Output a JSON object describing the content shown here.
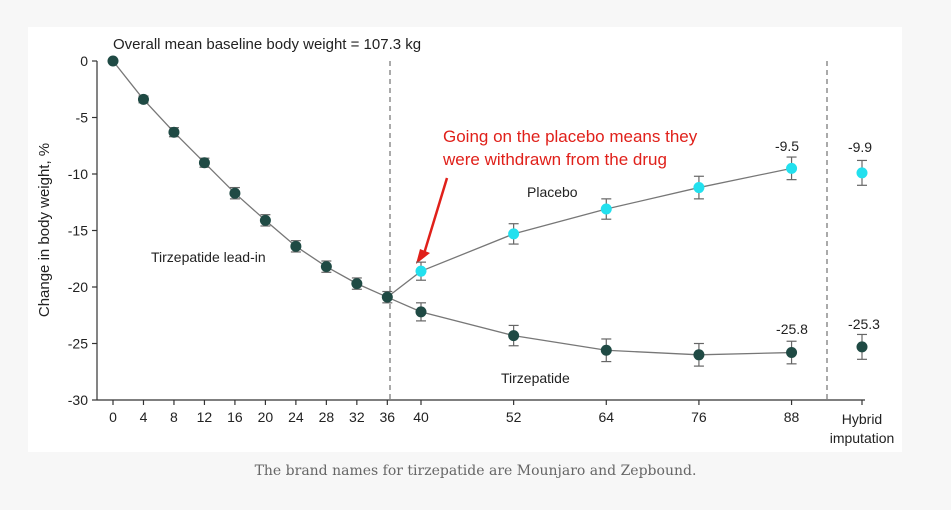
{
  "chart_data": {
    "type": "line",
    "title": "Overall mean baseline body weight = 107.3 kg",
    "ylabel": "Change in body weight, %",
    "xlabel": "",
    "ylim": [
      -30,
      0
    ],
    "yticks": [
      0,
      -5,
      -10,
      -15,
      -20,
      -25,
      -30
    ],
    "xtick_labels": [
      "0",
      "4",
      "8",
      "12",
      "16",
      "20",
      "24",
      "28",
      "32",
      "36",
      "40",
      "52",
      "64",
      "76",
      "88"
    ],
    "extra_xtick_label": [
      "Hybrid",
      "imputation"
    ],
    "grid": false,
    "series": [
      {
        "name": "Tirzepatide lead-in",
        "color": "#1f4a44",
        "points": [
          {
            "x": 0,
            "y": 0,
            "err": 0
          },
          {
            "x": 4,
            "y": -3.4,
            "err": 0.3
          },
          {
            "x": 8,
            "y": -6.3,
            "err": 0.4
          },
          {
            "x": 12,
            "y": -9.0,
            "err": 0.4
          },
          {
            "x": 16,
            "y": -11.7,
            "err": 0.5
          },
          {
            "x": 20,
            "y": -14.1,
            "err": 0.5
          },
          {
            "x": 24,
            "y": -16.4,
            "err": 0.5
          },
          {
            "x": 28,
            "y": -18.2,
            "err": 0.5
          },
          {
            "x": 32,
            "y": -19.7,
            "err": 0.5
          },
          {
            "x": 36,
            "y": -20.9,
            "err": 0.5
          }
        ]
      },
      {
        "name": "Placebo",
        "color": "#22e0ee",
        "points": [
          {
            "x": 36,
            "y": -20.9,
            "err": 0
          },
          {
            "x": 40,
            "y": -18.6,
            "err": 0.8
          },
          {
            "x": 52,
            "y": -15.3,
            "err": 0.9
          },
          {
            "x": 64,
            "y": -13.1,
            "err": 0.9
          },
          {
            "x": 76,
            "y": -11.2,
            "err": 1.0
          },
          {
            "x": 88,
            "y": -9.5,
            "err": 1.0
          }
        ],
        "hybrid": {
          "y": -9.9,
          "err": 1.1,
          "label": "-9.9"
        },
        "end_label": "-9.5"
      },
      {
        "name": "Tirzepatide",
        "color": "#1f4a44",
        "points": [
          {
            "x": 36,
            "y": -20.9,
            "err": 0
          },
          {
            "x": 40,
            "y": -22.2,
            "err": 0.8
          },
          {
            "x": 52,
            "y": -24.3,
            "err": 0.9
          },
          {
            "x": 64,
            "y": -25.6,
            "err": 1.0
          },
          {
            "x": 76,
            "y": -26.0,
            "err": 1.0
          },
          {
            "x": 88,
            "y": -25.8,
            "err": 1.0
          }
        ],
        "hybrid": {
          "y": -25.3,
          "err": 1.1,
          "label": "-25.3"
        },
        "end_label": "-25.8"
      }
    ],
    "annotation": {
      "line1": "Going on the placebo means they",
      "line2": "were withdrawn from the drug",
      "color": "#e0201a"
    }
  },
  "caption": "The brand names for tirzepatide are Mounjaro and Zepbound."
}
